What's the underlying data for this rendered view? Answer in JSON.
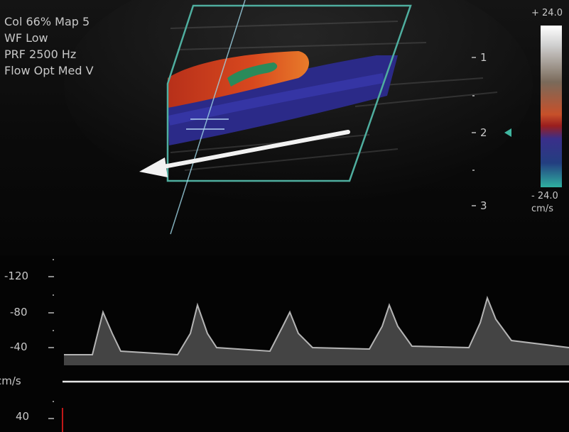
{
  "settings": {
    "col": "Col 66%  Map 5",
    "wf": "WF Low",
    "prf": "PRF 2500  Hz",
    "flow": "Flow Opt  Med V"
  },
  "depth_scale": [
    "1",
    "2",
    "3"
  ],
  "color_bar": {
    "top": "+ 24.0",
    "bottom": "- 24.0",
    "unit": "cm/s"
  },
  "spectral_axis": {
    "unit": "cm/s",
    "ticks": [
      "-120",
      "-80",
      "-40",
      "40"
    ]
  }
}
